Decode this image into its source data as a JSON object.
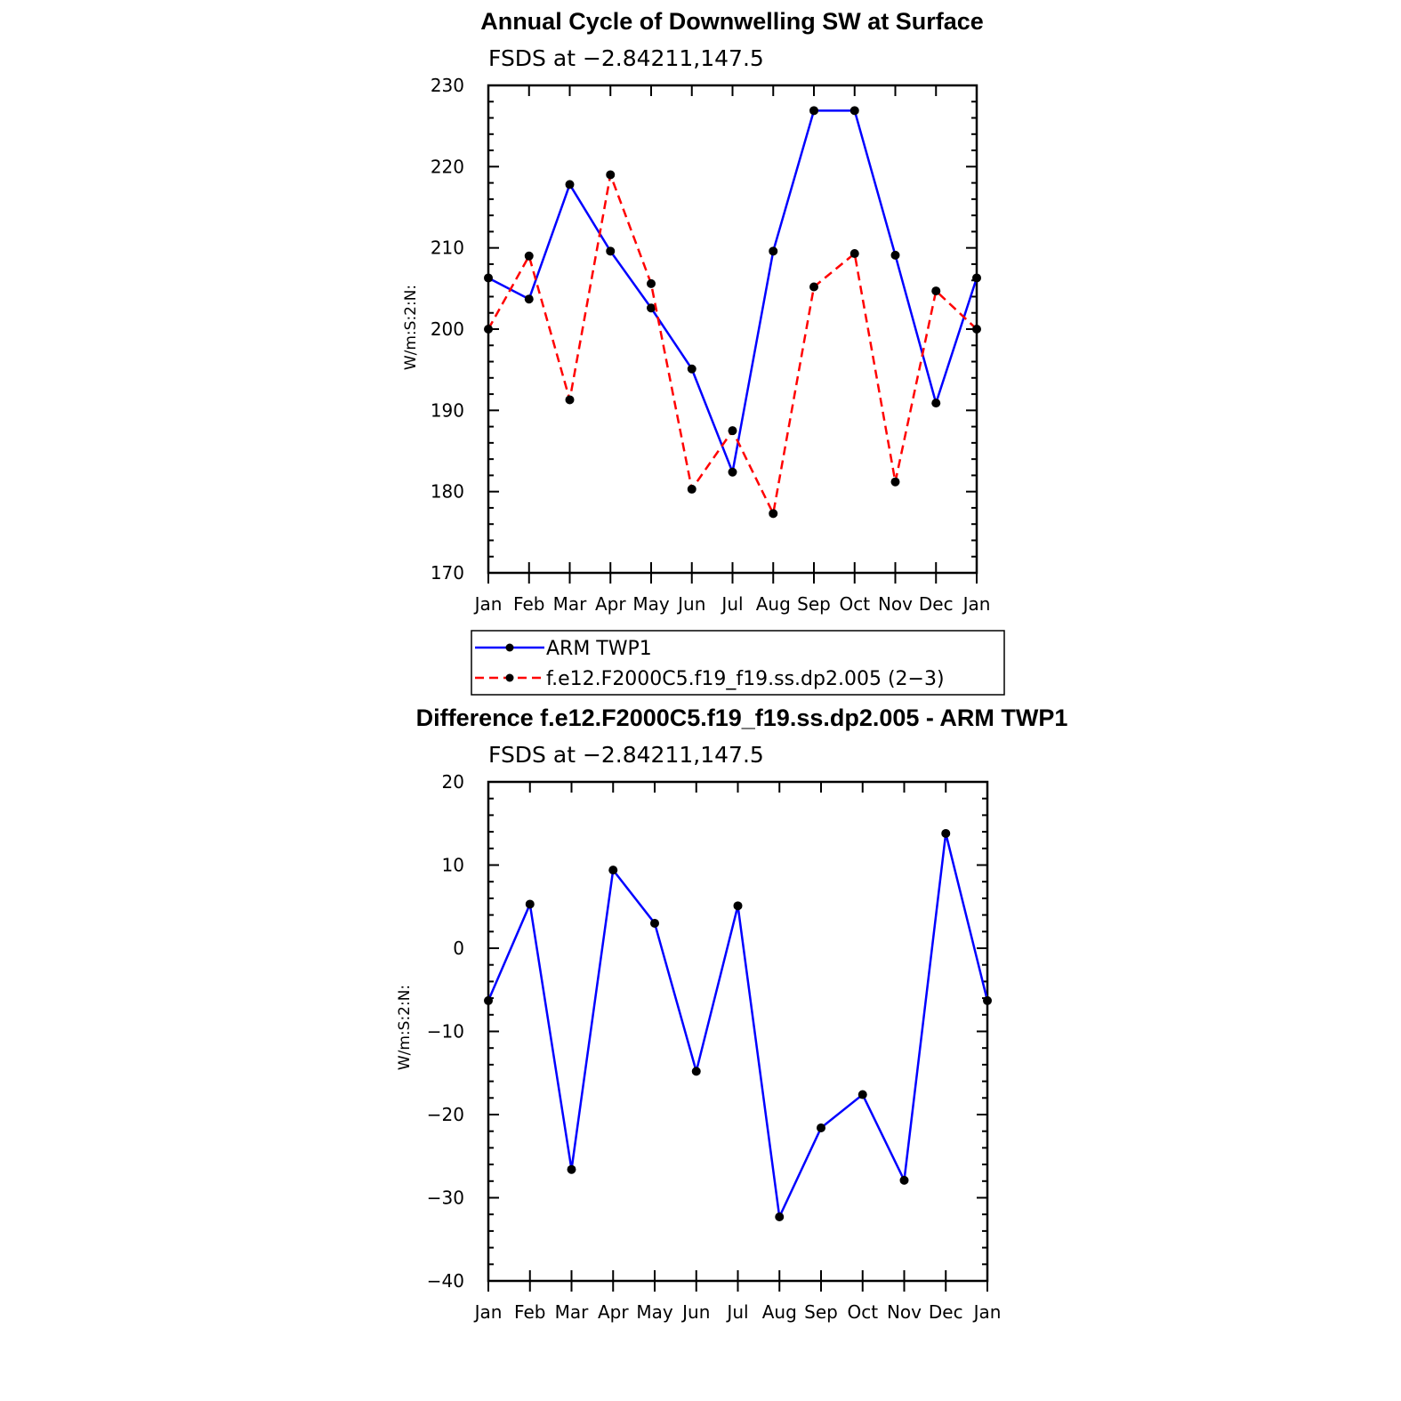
{
  "chart_data": [
    {
      "type": "line",
      "title": "Annual Cycle of Downwelling SW at Surface",
      "subtitle": "FSDS at −2.84211,147.5",
      "ylabel": "W/m:S:2:N:",
      "xlabel": "",
      "categories": [
        "Jan",
        "Feb",
        "Mar",
        "Apr",
        "May",
        "Jun",
        "Jul",
        "Aug",
        "Sep",
        "Oct",
        "Nov",
        "Dec",
        "Jan"
      ],
      "ylim": [
        170,
        230
      ],
      "yticks": [
        "170",
        "180",
        "190",
        "200",
        "210",
        "220",
        "230"
      ],
      "grid": false,
      "series": [
        {
          "name": "ARM TWP1",
          "color": "#0000ff",
          "style": "solid",
          "values": [
            206.3,
            203.7,
            217.8,
            209.6,
            202.6,
            195.1,
            182.4,
            209.6,
            226.9,
            226.9,
            209.1,
            190.9,
            206.3
          ]
        },
        {
          "name": "f.e12.F2000C5.f19_f19.ss.dp2.005 (2−3)",
          "color": "#ff0000",
          "style": "dashed",
          "values": [
            200.0,
            209.0,
            191.3,
            219.0,
            205.6,
            180.3,
            187.5,
            177.3,
            205.2,
            209.3,
            181.2,
            204.7,
            200.0
          ]
        }
      ],
      "legend_position": "below"
    },
    {
      "type": "line",
      "title": "Difference f.e12.F2000C5.f19_f19.ss.dp2.005 - ARM TWP1",
      "subtitle": "FSDS at −2.84211,147.5",
      "ylabel": "W/m:S:2:N:",
      "xlabel": "",
      "categories": [
        "Jan",
        "Feb",
        "Mar",
        "Apr",
        "May",
        "Jun",
        "Jul",
        "Aug",
        "Sep",
        "Oct",
        "Nov",
        "Dec",
        "Jan"
      ],
      "ylim": [
        -40,
        20
      ],
      "yticks": [
        "−40",
        "−30",
        "−20",
        "−10",
        "0",
        "10",
        "20"
      ],
      "grid": false,
      "series": [
        {
          "color": "#0000ff",
          "style": "solid",
          "values": [
            -6.3,
            5.3,
            -26.6,
            9.4,
            3.0,
            -14.8,
            5.1,
            -32.3,
            -21.6,
            -17.6,
            -27.9,
            13.8,
            -6.3
          ]
        }
      ]
    }
  ]
}
